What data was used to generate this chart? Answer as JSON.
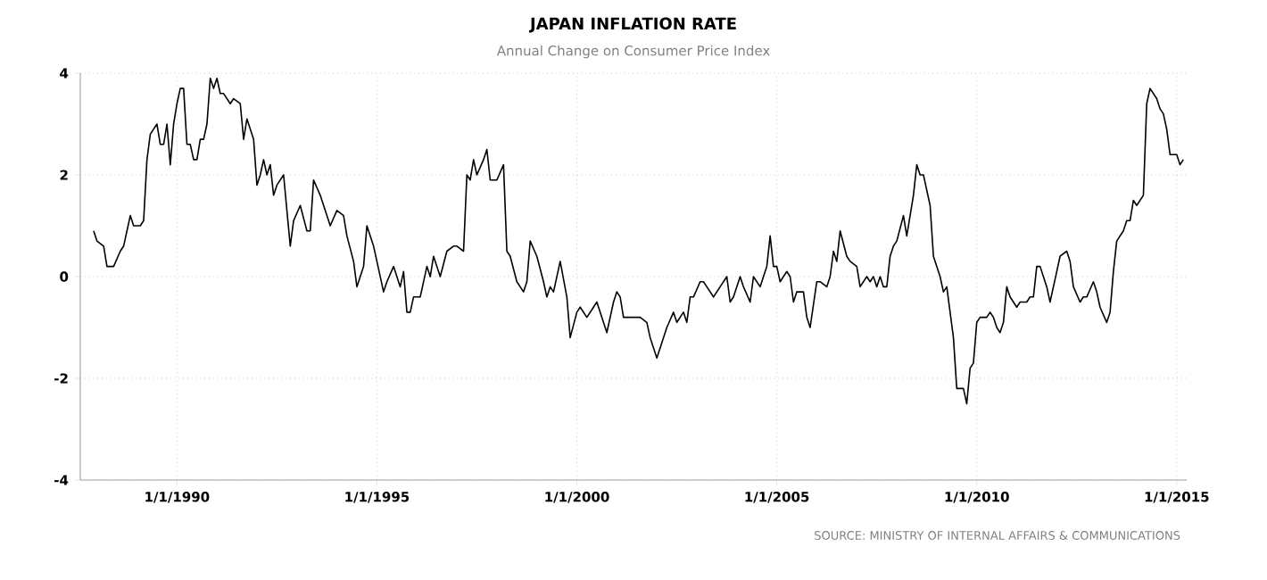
{
  "chart_data": {
    "type": "line",
    "title": "JAPAN INFLATION RATE",
    "subtitle": "Annual Change on Consumer Price Index",
    "annotations": [
      "SOURCE: MINISTRY OF INTERNAL AFFAIRS & COMMUNICATIONS"
    ],
    "x": [
      "1987-12",
      "1988-01",
      "1988-03",
      "1988-04",
      "1988-06",
      "1988-08",
      "1988-09",
      "1988-11",
      "1988-12",
      "1989-02",
      "1989-03",
      "1989-04",
      "1989-05",
      "1989-07",
      "1989-08",
      "1989-09",
      "1989-10",
      "1989-11",
      "1989-12",
      "1990-01",
      "1990-02",
      "1990-03",
      "1990-04",
      "1990-05",
      "1990-06",
      "1990-07",
      "1990-08",
      "1990-09",
      "1990-10",
      "1990-11",
      "1990-12",
      "1991-01",
      "1991-02",
      "1991-03",
      "1991-05",
      "1991-06",
      "1991-08",
      "1991-09",
      "1991-10",
      "1991-12",
      "1992-01",
      "1992-02",
      "1992-03",
      "1992-04",
      "1992-05",
      "1992-06",
      "1992-07",
      "1992-09",
      "1992-11",
      "1992-12",
      "1993-02",
      "1993-04",
      "1993-05",
      "1993-06",
      "1993-08",
      "1993-11",
      "1994-01",
      "1994-03",
      "1994-04",
      "1994-06",
      "1994-07",
      "1994-09",
      "1994-10",
      "1994-12",
      "1995-01",
      "1995-03",
      "1995-04",
      "1995-06",
      "1995-08",
      "1995-09",
      "1995-10",
      "1995-11",
      "1995-12",
      "1996-02",
      "1996-04",
      "1996-05",
      "1996-06",
      "1996-08",
      "1996-10",
      "1996-12",
      "1997-01",
      "1997-03",
      "1997-04",
      "1997-05",
      "1997-06",
      "1997-07",
      "1997-09",
      "1997-10",
      "1997-11",
      "1998-01",
      "1998-03",
      "1998-04",
      "1998-05",
      "1998-07",
      "1998-09",
      "1998-10",
      "1998-11",
      "1999-01",
      "1999-03",
      "1999-04",
      "1999-05",
      "1999-06",
      "1999-08",
      "1999-10",
      "1999-11",
      "2000-01",
      "2000-02",
      "2000-04",
      "2000-06",
      "2000-07",
      "2000-10",
      "2000-12",
      "2001-01",
      "2001-02",
      "2001-03",
      "2001-05",
      "2001-07",
      "2001-08",
      "2001-10",
      "2001-11",
      "2002-01",
      "2002-03",
      "2002-04",
      "2002-06",
      "2002-07",
      "2002-09",
      "2002-10",
      "2002-11",
      "2002-12",
      "2003-02",
      "2003-03",
      "2003-04",
      "2003-06",
      "2003-07",
      "2003-08",
      "2003-10",
      "2003-11",
      "2003-12",
      "2004-02",
      "2004-03",
      "2004-05",
      "2004-06",
      "2004-08",
      "2004-10",
      "2004-11",
      "2004-12",
      "2005-01",
      "2005-02",
      "2005-04",
      "2005-05",
      "2005-06",
      "2005-07",
      "2005-09",
      "2005-10",
      "2005-11",
      "2006-01",
      "2006-02",
      "2006-04",
      "2006-05",
      "2006-06",
      "2006-07",
      "2006-08",
      "2006-10",
      "2006-11",
      "2007-01",
      "2007-02",
      "2007-04",
      "2007-05",
      "2007-06",
      "2007-07",
      "2007-08",
      "2007-09",
      "2007-10",
      "2007-11",
      "2007-12",
      "2008-01",
      "2008-03",
      "2008-04",
      "2008-06",
      "2008-07",
      "2008-08",
      "2008-09",
      "2008-11",
      "2008-12",
      "2009-02",
      "2009-03",
      "2009-04",
      "2009-06",
      "2009-07",
      "2009-09",
      "2009-10",
      "2009-11",
      "2009-12",
      "2010-01",
      "2010-02",
      "2010-04",
      "2010-05",
      "2010-06",
      "2010-07",
      "2010-08",
      "2010-09",
      "2010-10",
      "2010-11",
      "2011-01",
      "2011-02",
      "2011-04",
      "2011-05",
      "2011-06",
      "2011-07",
      "2011-08",
      "2011-10",
      "2011-11",
      "2012-01",
      "2012-02",
      "2012-04",
      "2012-05",
      "2012-06",
      "2012-08",
      "2012-09",
      "2012-10",
      "2012-12",
      "2013-01",
      "2013-02",
      "2013-04",
      "2013-05",
      "2013-06",
      "2013-07",
      "2013-09",
      "2013-10",
      "2013-11",
      "2013-12",
      "2014-01",
      "2014-02",
      "2014-03",
      "2014-04",
      "2014-05",
      "2014-07",
      "2014-08",
      "2014-09",
      "2014-10",
      "2014-11",
      "2015-01",
      "2015-02",
      "2015-03"
    ],
    "series": [
      {
        "color": "#000000",
        "values": [
          0.9,
          0.7,
          0.6,
          0.2,
          0.2,
          0.5,
          0.6,
          1.2,
          1.0,
          1.0,
          1.1,
          2.3,
          2.8,
          3.0,
          2.6,
          2.6,
          3.0,
          2.2,
          3.0,
          3.4,
          3.7,
          3.7,
          2.6,
          2.6,
          2.3,
          2.3,
          2.7,
          2.7,
          3.0,
          3.9,
          3.7,
          3.9,
          3.6,
          3.6,
          3.4,
          3.5,
          3.4,
          2.7,
          3.1,
          2.7,
          1.8,
          2.0,
          2.3,
          2.0,
          2.2,
          1.6,
          1.8,
          2.0,
          0.6,
          1.1,
          1.4,
          0.9,
          0.9,
          1.9,
          1.6,
          1.0,
          1.3,
          1.2,
          0.8,
          0.3,
          -0.2,
          0.2,
          1.0,
          0.6,
          0.3,
          -0.3,
          -0.1,
          0.2,
          -0.2,
          0.1,
          -0.7,
          -0.7,
          -0.4,
          -0.4,
          0.2,
          0.0,
          0.4,
          0.0,
          0.5,
          0.6,
          0.6,
          0.5,
          2.0,
          1.9,
          2.3,
          2.0,
          2.3,
          2.5,
          1.9,
          1.9,
          2.2,
          0.5,
          0.4,
          -0.1,
          -0.3,
          -0.1,
          0.7,
          0.4,
          -0.1,
          -0.4,
          -0.2,
          -0.3,
          0.3,
          -0.4,
          -1.2,
          -0.7,
          -0.6,
          -0.8,
          -0.6,
          -0.5,
          -1.1,
          -0.5,
          -0.3,
          -0.4,
          -0.8,
          -0.8,
          -0.8,
          -0.8,
          -0.9,
          -1.2,
          -1.6,
          -1.2,
          -1.0,
          -0.7,
          -0.9,
          -0.7,
          -0.9,
          -0.4,
          -0.4,
          -0.1,
          -0.1,
          -0.2,
          -0.4,
          -0.3,
          -0.2,
          0.0,
          -0.5,
          -0.4,
          0.0,
          -0.2,
          -0.5,
          0.0,
          -0.2,
          0.2,
          0.8,
          0.2,
          0.2,
          -0.1,
          0.1,
          0.0,
          -0.5,
          -0.3,
          -0.3,
          -0.8,
          -1.0,
          -0.1,
          -0.1,
          -0.2,
          0.0,
          0.5,
          0.3,
          0.9,
          0.4,
          0.3,
          0.2,
          -0.2,
          0.0,
          -0.1,
          0.0,
          -0.2,
          0.0,
          -0.2,
          -0.2,
          0.4,
          0.6,
          0.7,
          1.2,
          0.8,
          1.6,
          2.2,
          2.0,
          2.0,
          1.4,
          0.4,
          0.0,
          -0.3,
          -0.2,
          -1.2,
          -2.2,
          -2.2,
          -2.5,
          -1.8,
          -1.7,
          -0.9,
          -0.8,
          -0.8,
          -0.7,
          -0.8,
          -1.0,
          -1.1,
          -0.9,
          -0.2,
          -0.4,
          -0.6,
          -0.5,
          -0.5,
          -0.4,
          -0.4,
          0.2,
          0.2,
          -0.2,
          -0.5,
          0.1,
          0.4,
          0.5,
          0.3,
          -0.2,
          -0.5,
          -0.4,
          -0.4,
          -0.1,
          -0.3,
          -0.6,
          -0.9,
          -0.7,
          0.1,
          0.7,
          0.9,
          1.1,
          1.1,
          1.5,
          1.4,
          1.5,
          1.6,
          3.4,
          3.7,
          3.5,
          3.3,
          3.2,
          2.9,
          2.4,
          2.4,
          2.2,
          2.3
        ]
      }
    ],
    "xlim": [
      "1987-08",
      "2015-04"
    ],
    "xticks": [
      {
        "value": "1990-01-01",
        "label": "1/1/1990"
      },
      {
        "value": "1995-01-01",
        "label": "1/1/1995"
      },
      {
        "value": "2000-01-01",
        "label": "1/1/2000"
      },
      {
        "value": "2005-01-01",
        "label": "1/1/2005"
      },
      {
        "value": "2010-01-01",
        "label": "1/1/2010"
      },
      {
        "value": "2015-01-01",
        "label": "1/1/2015"
      }
    ],
    "ylim": [
      -4,
      4
    ],
    "yticks": [
      -4,
      -2,
      0,
      2,
      4
    ],
    "grid": true,
    "line_style": "solid",
    "marker": "none"
  }
}
